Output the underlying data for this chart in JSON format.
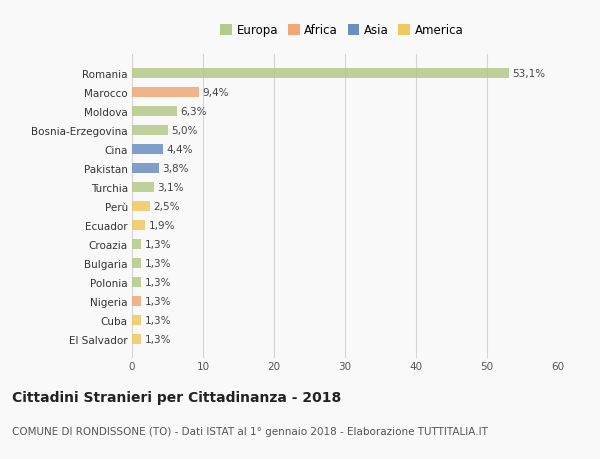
{
  "categories": [
    "Romania",
    "Marocco",
    "Moldova",
    "Bosnia-Erzegovina",
    "Cina",
    "Pakistan",
    "Turchia",
    "Perù",
    "Ecuador",
    "Croazia",
    "Bulgaria",
    "Polonia",
    "Nigeria",
    "Cuba",
    "El Salvador"
  ],
  "values": [
    53.1,
    9.4,
    6.3,
    5.0,
    4.4,
    3.8,
    3.1,
    2.5,
    1.9,
    1.3,
    1.3,
    1.3,
    1.3,
    1.3,
    1.3
  ],
  "labels": [
    "53,1%",
    "9,4%",
    "6,3%",
    "5,0%",
    "4,4%",
    "3,8%",
    "3,1%",
    "2,5%",
    "1,9%",
    "1,3%",
    "1,3%",
    "1,3%",
    "1,3%",
    "1,3%",
    "1,3%"
  ],
  "colors": [
    "#b5c98a",
    "#f0a875",
    "#b5c98a",
    "#b5c98a",
    "#6a8fc0",
    "#6a8fc0",
    "#b5c98a",
    "#f0c860",
    "#f0c860",
    "#b5c98a",
    "#b5c98a",
    "#b5c98a",
    "#f0a875",
    "#f0c860",
    "#f0c860"
  ],
  "legend_labels": [
    "Europa",
    "Africa",
    "Asia",
    "America"
  ],
  "legend_colors": [
    "#b5c98a",
    "#f0a875",
    "#6a8fc0",
    "#f0c860"
  ],
  "xlim": [
    0,
    60
  ],
  "xticks": [
    0,
    10,
    20,
    30,
    40,
    50,
    60
  ],
  "title": "Cittadini Stranieri per Cittadinanza - 2018",
  "subtitle": "COMUNE DI RONDISSONE (TO) - Dati ISTAT al 1° gennaio 2018 - Elaborazione TUTTITALIA.IT",
  "background_color": "#f9f9f9",
  "grid_color": "#d5d5d5",
  "bar_height": 0.55,
  "title_fontsize": 10,
  "subtitle_fontsize": 7.5,
  "label_fontsize": 7.5,
  "tick_fontsize": 7.5,
  "legend_fontsize": 8.5
}
